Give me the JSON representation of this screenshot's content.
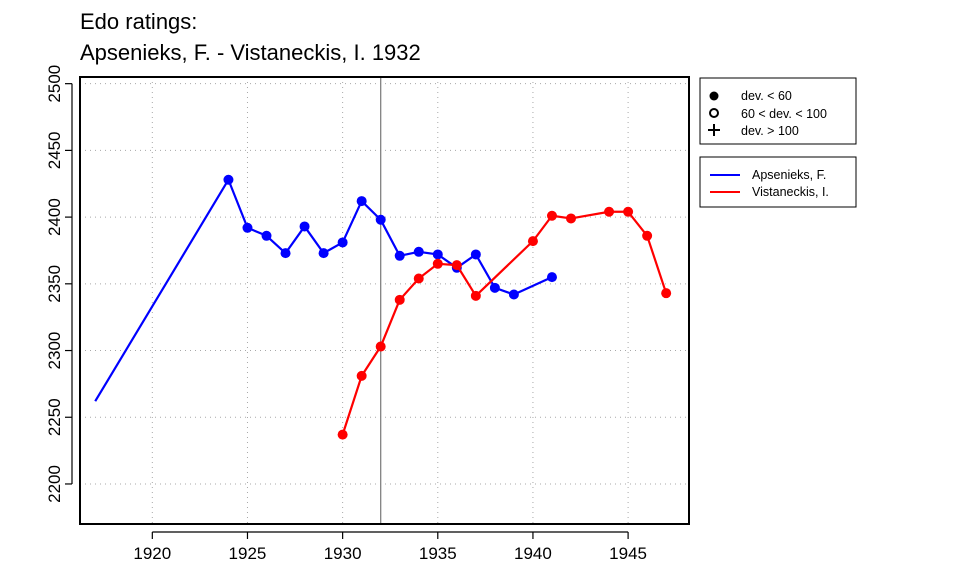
{
  "chart_data": {
    "type": "line",
    "title": [
      "Edo ratings:",
      "Apsenieks, F. - Vistaneckis, I. 1932"
    ],
    "xlim": [
      1916.2,
      1948.2
    ],
    "ylim": [
      2170,
      2505
    ],
    "x_ticks": [
      1920,
      1925,
      1930,
      1935,
      1940,
      1945
    ],
    "y_ticks": [
      2200,
      2250,
      2300,
      2350,
      2400,
      2450,
      2500
    ],
    "grid": true,
    "grid_style": "dotted",
    "reference_line_x": 1932,
    "reference_line_color": "#808080",
    "marker_legend": {
      "position": "top-right",
      "entries": [
        {
          "marker": "filled-circle",
          "label": "dev. < 60"
        },
        {
          "marker": "open-circle",
          "label": "60 < dev. < 100"
        },
        {
          "marker": "plus",
          "label": "dev. > 100"
        }
      ]
    },
    "series_legend": {
      "position": "right",
      "entries": [
        {
          "label": "Apsenieks, F.",
          "color": "#0000ff"
        },
        {
          "label": "Vistaneckis, I.",
          "color": "#ff0000"
        }
      ]
    },
    "series": [
      {
        "name": "Apsenieks, F.",
        "color": "#0000ff",
        "x": [
          1917,
          1924,
          1925,
          1926,
          1927,
          1928,
          1929,
          1930,
          1931,
          1932,
          1933,
          1934,
          1935,
          1936,
          1937,
          1938,
          1939,
          1941
        ],
        "y": [
          2262,
          2428,
          2392,
          2386,
          2373,
          2393,
          2373,
          2381,
          2412,
          2398,
          2371,
          2374,
          2372,
          2362,
          2372,
          2347,
          2342,
          2355
        ],
        "markers": [
          null,
          "filled",
          "filled",
          "filled",
          "filled",
          "filled",
          "filled",
          "filled",
          "filled",
          "filled",
          "filled",
          "filled",
          "filled",
          "filled",
          "filled",
          "filled",
          "filled",
          "filled"
        ]
      },
      {
        "name": "Vistaneckis, I.",
        "color": "#ff0000",
        "x": [
          1930,
          1931,
          1932,
          1933,
          1934,
          1935,
          1936,
          1937,
          1940,
          1941,
          1942,
          1944,
          1945,
          1946,
          1947
        ],
        "y": [
          2237,
          2281,
          2303,
          2338,
          2354,
          2365,
          2364,
          2341,
          2382,
          2401,
          2399,
          2404,
          2404,
          2386,
          2343
        ],
        "markers": [
          "filled",
          "filled",
          "filled",
          "filled",
          "filled",
          "filled",
          "filled",
          "filled",
          "filled",
          "filled",
          "filled",
          "filled",
          "filled",
          "filled",
          "filled"
        ]
      }
    ]
  }
}
